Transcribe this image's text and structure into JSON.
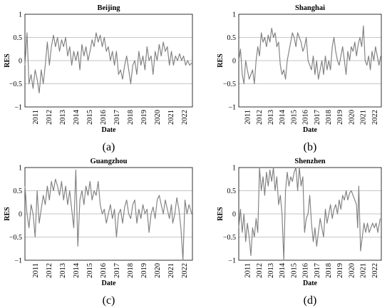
{
  "figure": {
    "panels": [
      {
        "caption": "(a)",
        "chart_index": 0
      },
      {
        "caption": "(b)",
        "chart_index": 1
      },
      {
        "caption": "(c)",
        "chart_index": 2
      },
      {
        "caption": "(d)",
        "chart_index": 3
      }
    ]
  },
  "chart_data": [
    {
      "type": "line",
      "title": "Beijing",
      "xlabel": "Date",
      "ylabel": "RES",
      "xlim": [
        2010.25,
        2022.6
      ],
      "ylim": [
        -1,
        1
      ],
      "yticks": [
        -1,
        -0.5,
        0,
        0.5,
        1
      ],
      "ytick_labels": [
        "−1",
        "−0.5",
        "0",
        "0.5",
        "1"
      ],
      "xticks": [
        2011,
        2012,
        2013,
        2014,
        2015,
        2016,
        2017,
        2018,
        2019,
        2020,
        2021,
        2022
      ],
      "xtick_labels": [
        "2011",
        "2012",
        "2013",
        "2014",
        "2015",
        "2016",
        "2017",
        "2018",
        "2019",
        "2020",
        "2021",
        "2022"
      ],
      "grid": "horizontal",
      "series": [
        {
          "x": [
            2010.25,
            2010.4,
            2010.55,
            2010.7,
            2010.85,
            2011.0,
            2011.15,
            2011.3,
            2011.45,
            2011.6,
            2011.75,
            2011.9,
            2012.05,
            2012.2,
            2012.35,
            2012.5,
            2012.65,
            2012.8,
            2012.95,
            2013.1,
            2013.25,
            2013.4,
            2013.55,
            2013.7,
            2013.85,
            2014.0,
            2014.15,
            2014.3,
            2014.45,
            2014.6,
            2014.75,
            2014.9,
            2015.05,
            2015.2,
            2015.35,
            2015.5,
            2015.65,
            2015.8,
            2015.95,
            2016.1,
            2016.25,
            2016.4,
            2016.55,
            2016.7,
            2016.85,
            2017.0,
            2017.15,
            2017.3,
            2017.45,
            2017.6,
            2017.75,
            2017.9,
            2018.05,
            2018.2,
            2018.35,
            2018.5,
            2018.65,
            2018.8,
            2018.95,
            2019.1,
            2019.25,
            2019.4,
            2019.55,
            2019.7,
            2019.85,
            2020.0,
            2020.15,
            2020.3,
            2020.45,
            2020.6,
            2020.75,
            2020.9,
            2021.05,
            2021.2,
            2021.35,
            2021.5,
            2021.65,
            2021.8,
            2021.95,
            2022.1,
            2022.25,
            2022.4,
            2022.55
          ],
          "y": [
            -0.1,
            0.6,
            -0.5,
            -0.3,
            -0.6,
            -0.2,
            -0.4,
            -0.7,
            -0.2,
            -0.5,
            -0.1,
            0.4,
            -0.1,
            0.3,
            0.55,
            0.3,
            0.5,
            0.2,
            0.45,
            0.3,
            0.5,
            0.1,
            0.3,
            -0.1,
            0.2,
            0.0,
            0.2,
            -0.2,
            0.35,
            0.1,
            0.3,
            0.0,
            0.2,
            0.45,
            0.3,
            0.6,
            0.4,
            0.55,
            0.3,
            0.5,
            0.2,
            0.3,
            0.0,
            0.2,
            -0.1,
            0.2,
            -0.3,
            -0.2,
            -0.4,
            -0.1,
            0.1,
            -0.2,
            -0.5,
            -0.1,
            0.0,
            -0.3,
            0.2,
            -0.1,
            0.1,
            -0.2,
            0.3,
            0.0,
            0.1,
            -0.3,
            0.2,
            0.0,
            0.35,
            0.1,
            0.4,
            0.2,
            0.3,
            -0.1,
            0.2,
            -0.1,
            0.1,
            0.0,
            0.15,
            0.0,
            0.1,
            -0.1,
            0.0,
            -0.1,
            -0.05
          ]
        }
      ]
    },
    {
      "type": "line",
      "title": "Shanghai",
      "xlabel": "Date",
      "ylabel": "RES",
      "xlim": [
        2010.25,
        2022.6
      ],
      "ylim": [
        -1,
        1
      ],
      "yticks": [
        -1,
        -0.5,
        0,
        0.5,
        1
      ],
      "ytick_labels": [
        "−1",
        "−0.5",
        "0",
        "0.5",
        "1"
      ],
      "xticks": [
        2011,
        2012,
        2013,
        2014,
        2015,
        2016,
        2017,
        2018,
        2019,
        2020,
        2021,
        2022
      ],
      "xtick_labels": [
        "2011",
        "2012",
        "2013",
        "2014",
        "2015",
        "2016",
        "2017",
        "2018",
        "2019",
        "2020",
        "2021",
        "2022"
      ],
      "grid": "horizontal",
      "series": [
        {
          "x": [
            2010.25,
            2010.4,
            2010.55,
            2010.7,
            2010.85,
            2011.0,
            2011.15,
            2011.3,
            2011.45,
            2011.6,
            2011.75,
            2011.9,
            2012.05,
            2012.2,
            2012.35,
            2012.5,
            2012.65,
            2012.8,
            2012.95,
            2013.1,
            2013.25,
            2013.4,
            2013.55,
            2013.7,
            2013.85,
            2014.0,
            2014.15,
            2014.3,
            2014.45,
            2014.6,
            2014.75,
            2014.9,
            2015.05,
            2015.2,
            2015.35,
            2015.5,
            2015.65,
            2015.8,
            2015.95,
            2016.1,
            2016.25,
            2016.4,
            2016.55,
            2016.7,
            2016.85,
            2017.0,
            2017.15,
            2017.3,
            2017.45,
            2017.6,
            2017.75,
            2017.9,
            2018.05,
            2018.2,
            2018.35,
            2018.5,
            2018.65,
            2018.8,
            2018.95,
            2019.1,
            2019.25,
            2019.4,
            2019.55,
            2019.7,
            2019.85,
            2020.0,
            2020.15,
            2020.3,
            2020.45,
            2020.6,
            2020.75,
            2020.9,
            2021.05,
            2021.2,
            2021.35,
            2021.5,
            2021.65,
            2021.8,
            2021.95,
            2022.1,
            2022.25,
            2022.4,
            2022.55
          ],
          "y": [
            0.0,
            0.25,
            -0.3,
            -0.5,
            0.0,
            -0.2,
            -0.4,
            -0.3,
            -0.2,
            -0.5,
            0.0,
            0.3,
            0.1,
            0.6,
            0.4,
            0.5,
            0.3,
            0.55,
            0.4,
            0.7,
            0.5,
            0.6,
            0.3,
            0.4,
            -0.1,
            -0.3,
            -0.2,
            -0.4,
            0.0,
            0.2,
            0.4,
            0.6,
            0.5,
            0.3,
            0.6,
            0.5,
            0.4,
            0.2,
            0.3,
            0.5,
            0.0,
            -0.1,
            -0.2,
            0.1,
            -0.3,
            0.0,
            -0.4,
            -0.2,
            0.0,
            -0.3,
            0.1,
            -0.2,
            0.0,
            -0.2,
            0.3,
            0.5,
            0.2,
            0.0,
            -0.1,
            0.1,
            0.3,
            0.0,
            -0.3,
            0.2,
            0.0,
            0.3,
            0.2,
            0.4,
            0.1,
            0.35,
            0.5,
            0.3,
            0.75,
            0.0,
            -0.1,
            0.1,
            -0.2,
            0.2,
            0.0,
            0.3,
            0.1,
            -0.1,
            0.1
          ]
        }
      ]
    },
    {
      "type": "line",
      "title": "Guangzhou",
      "xlabel": "Date",
      "ylabel": "RES",
      "xlim": [
        2010.25,
        2022.6
      ],
      "ylim": [
        -1,
        1
      ],
      "yticks": [
        -1,
        -0.5,
        0,
        0.5,
        1
      ],
      "ytick_labels": [
        "−1",
        "−0.5",
        "0",
        "0.5",
        "1"
      ],
      "xticks": [
        2011,
        2012,
        2013,
        2014,
        2015,
        2016,
        2017,
        2018,
        2019,
        2020,
        2021,
        2022
      ],
      "xtick_labels": [
        "2011",
        "2012",
        "2013",
        "2014",
        "2015",
        "2016",
        "2017",
        "2018",
        "2019",
        "2020",
        "2021",
        "2022"
      ],
      "grid": "horizontal",
      "series": [
        {
          "x": [
            2010.25,
            2010.4,
            2010.55,
            2010.7,
            2010.85,
            2011.0,
            2011.15,
            2011.3,
            2011.45,
            2011.6,
            2011.75,
            2011.9,
            2012.05,
            2012.2,
            2012.35,
            2012.5,
            2012.65,
            2012.8,
            2012.95,
            2013.1,
            2013.25,
            2013.4,
            2013.55,
            2013.7,
            2013.85,
            2014.0,
            2014.15,
            2014.3,
            2014.45,
            2014.6,
            2014.75,
            2014.9,
            2015.05,
            2015.2,
            2015.35,
            2015.5,
            2015.65,
            2015.8,
            2015.95,
            2016.1,
            2016.25,
            2016.4,
            2016.55,
            2016.7,
            2016.85,
            2017.0,
            2017.15,
            2017.3,
            2017.45,
            2017.6,
            2017.75,
            2017.9,
            2018.05,
            2018.2,
            2018.35,
            2018.5,
            2018.65,
            2018.8,
            2018.95,
            2019.1,
            2019.25,
            2019.4,
            2019.55,
            2019.7,
            2019.85,
            2020.0,
            2020.15,
            2020.3,
            2020.45,
            2020.6,
            2020.75,
            2020.9,
            2021.05,
            2021.15,
            2021.3,
            2021.45,
            2021.6,
            2021.75,
            2021.9,
            2022.05,
            2022.2,
            2022.35,
            2022.55
          ],
          "y": [
            0.6,
            0.0,
            -0.3,
            0.2,
            0.0,
            -0.5,
            0.5,
            -0.2,
            0.1,
            0.4,
            0.2,
            0.6,
            0.3,
            0.7,
            0.5,
            0.75,
            0.6,
            0.4,
            0.7,
            0.3,
            0.6,
            0.2,
            0.5,
            0.1,
            -0.3,
            0.95,
            -0.7,
            0.3,
            0.5,
            0.2,
            0.6,
            0.4,
            0.7,
            0.3,
            0.5,
            0.4,
            0.7,
            0.2,
            0.0,
            0.1,
            -0.2,
            0.0,
            0.2,
            -0.1,
            0.1,
            -0.5,
            0.0,
            0.1,
            -0.2,
            0.15,
            0.3,
            0.0,
            -0.1,
            0.2,
            0.3,
            -0.2,
            0.1,
            -0.1,
            0.2,
            0.0,
            0.1,
            -0.4,
            0.0,
            0.15,
            -0.1,
            0.3,
            0.4,
            0.2,
            0.0,
            0.3,
            0.1,
            -0.1,
            0.2,
            -0.2,
            0.0,
            0.35,
            0.1,
            -0.3,
            -1.0,
            0.3,
            0.0,
            0.2,
            0.0
          ]
        }
      ]
    },
    {
      "type": "line",
      "title": "Shenzhen",
      "xlabel": "Date",
      "ylabel": "RES",
      "xlim": [
        2010.25,
        2022.6
      ],
      "ylim": [
        -1,
        1
      ],
      "yticks": [
        -1,
        -0.5,
        0,
        0.5,
        1
      ],
      "ytick_labels": [
        "−1",
        "−0.5",
        "0",
        "0.5",
        "1"
      ],
      "xticks": [
        2011,
        2012,
        2013,
        2014,
        2015,
        2016,
        2017,
        2018,
        2019,
        2020,
        2021,
        2022
      ],
      "xtick_labels": [
        "2011",
        "2012",
        "2013",
        "2014",
        "2015",
        "2016",
        "2017",
        "2018",
        "2019",
        "2020",
        "2021",
        "2022"
      ],
      "grid": "horizontal",
      "series": [
        {
          "x": [
            2010.25,
            2010.4,
            2010.55,
            2010.7,
            2010.85,
            2011.0,
            2011.15,
            2011.3,
            2011.45,
            2011.6,
            2011.75,
            2011.9,
            2012.05,
            2012.2,
            2012.35,
            2012.5,
            2012.65,
            2012.8,
            2012.95,
            2013.1,
            2013.25,
            2013.4,
            2013.55,
            2013.7,
            2013.85,
            2014.0,
            2014.15,
            2014.3,
            2014.45,
            2014.6,
            2014.75,
            2014.9,
            2015.05,
            2015.2,
            2015.35,
            2015.5,
            2015.65,
            2015.8,
            2015.95,
            2016.1,
            2016.25,
            2016.4,
            2016.55,
            2016.7,
            2016.85,
            2017.0,
            2017.15,
            2017.3,
            2017.45,
            2017.6,
            2017.75,
            2017.9,
            2018.05,
            2018.2,
            2018.35,
            2018.5,
            2018.65,
            2018.8,
            2018.95,
            2019.1,
            2019.25,
            2019.4,
            2019.55,
            2019.7,
            2019.85,
            2020.0,
            2020.15,
            2020.3,
            2020.45,
            2020.55,
            2020.65,
            2020.8,
            2020.95,
            2021.1,
            2021.25,
            2021.4,
            2021.55,
            2021.7,
            2021.85,
            2022.0,
            2022.15,
            2022.3,
            2022.5
          ],
          "y": [
            -0.3,
            0.1,
            -0.4,
            0.0,
            -0.6,
            -0.2,
            -0.5,
            -0.9,
            -0.3,
            -0.5,
            -0.1,
            -0.4,
            1.0,
            0.5,
            0.8,
            0.4,
            0.9,
            0.6,
            0.95,
            0.7,
            1.0,
            0.5,
            0.8,
            0.2,
            0.4,
            0.0,
            -1.0,
            0.5,
            0.9,
            0.6,
            0.8,
            0.7,
            0.9,
            1.0,
            0.5,
            1.0,
            0.6,
            0.8,
            -0.4,
            -0.1,
            0.0,
            0.4,
            -0.2,
            -0.6,
            -0.3,
            -0.7,
            -0.4,
            -0.1,
            -0.3,
            -0.5,
            0.1,
            -0.2,
            0.0,
            0.2,
            -0.1,
            0.1,
            0.2,
            0.0,
            0.3,
            0.1,
            0.4,
            0.3,
            0.5,
            0.3,
            0.45,
            0.5,
            0.4,
            0.3,
            0.2,
            -0.3,
            0.6,
            -0.8,
            -0.5,
            -0.2,
            -0.4,
            -0.2,
            -0.4,
            -0.3,
            -0.2,
            -0.3,
            -0.2,
            -0.4,
            -0.1
          ]
        }
      ]
    }
  ]
}
